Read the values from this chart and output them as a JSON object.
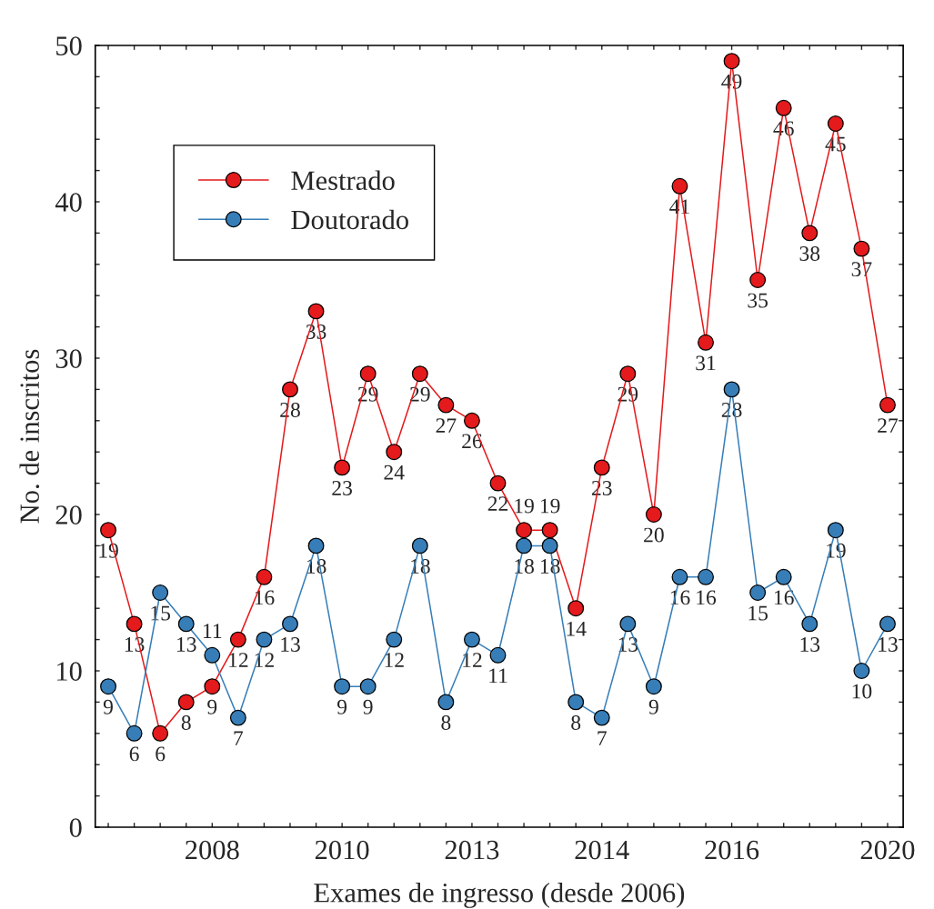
{
  "chart_data": {
    "type": "line",
    "xlabel": "Exames de ingresso (desde 2006)",
    "ylabel": "No. de inscritos",
    "categories": [
      null,
      null,
      null,
      null,
      "2008",
      null,
      null,
      null,
      null,
      "2010",
      null,
      null,
      null,
      null,
      "2013",
      null,
      null,
      null,
      null,
      "2014",
      null,
      null,
      null,
      null,
      "2016",
      null,
      null,
      null,
      null,
      null,
      "2020"
    ],
    "series": [
      {
        "name": "Mestrado",
        "color": "#e41a1c",
        "values": [
          19,
          13,
          6,
          8,
          9,
          12,
          16,
          28,
          33,
          23,
          29,
          24,
          29,
          27,
          26,
          22,
          19,
          19,
          14,
          23,
          29,
          20,
          41,
          31,
          49,
          35,
          46,
          38,
          45,
          37,
          27
        ]
      },
      {
        "name": "Doutorado",
        "color": "#377eb8",
        "values": [
          9,
          6,
          15,
          13,
          11,
          7,
          12,
          13,
          18,
          9,
          9,
          12,
          18,
          8,
          12,
          11,
          18,
          18,
          8,
          7,
          13,
          9,
          16,
          16,
          28,
          15,
          16,
          13,
          19,
          10,
          13
        ]
      }
    ],
    "ylim": [
      0,
      50
    ],
    "yticks": [
      0,
      {
        "value": 2,
        "label": null
      },
      {
        "value": 4,
        "label": null
      },
      {
        "value": 6,
        "label": null
      },
      {
        "value": 8,
        "label": null
      },
      10,
      {
        "value": 12,
        "label": null
      },
      {
        "value": 14,
        "label": null
      },
      {
        "value": 16,
        "label": null
      },
      {
        "value": 18,
        "label": null
      },
      20,
      {
        "value": 22,
        "label": null
      },
      {
        "value": 24,
        "label": null
      },
      {
        "value": 26,
        "label": null
      },
      {
        "value": 28,
        "label": null
      },
      30,
      {
        "value": 32,
        "label": null
      },
      {
        "value": 34,
        "label": null
      },
      {
        "value": 36,
        "label": null
      },
      {
        "value": 38,
        "label": null
      },
      40,
      {
        "value": 42,
        "label": null
      },
      {
        "value": 44,
        "label": null
      },
      {
        "value": 46,
        "label": null
      },
      {
        "value": 48,
        "label": null
      },
      50
    ],
    "grid": false,
    "legend": "top left",
    "marker": "circle",
    "line_style": "solid",
    "data_labels": true
  }
}
